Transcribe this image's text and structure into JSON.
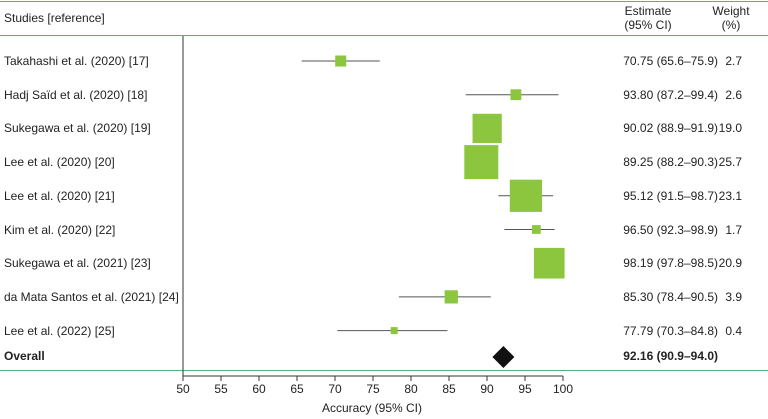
{
  "header": {
    "studies_label": "Studies [reference]",
    "estimate_label_line1": "Estimate",
    "estimate_label_line2": "(95% CI)",
    "weight_label_line1": "Weight",
    "weight_label_line2": "(%)"
  },
  "chart_data": {
    "type": "forest",
    "xlabel": "Accuracy (95% CI)",
    "xlim": [
      50,
      100
    ],
    "xticks": [
      50,
      55,
      60,
      65,
      70,
      75,
      80,
      85,
      90,
      95,
      100
    ],
    "marker_color": "#8cc63f",
    "rows": [
      {
        "study": "Takahashi et al. (2020) [17]",
        "estimate": 70.75,
        "lower": 65.6,
        "upper": 75.9,
        "estimate_text": "70.75 (65.6–75.9)",
        "weight": 2.7,
        "weight_text": "2.7"
      },
      {
        "study": "Hadj Saïd et al. (2020) [18]",
        "estimate": 93.8,
        "lower": 87.2,
        "upper": 99.4,
        "estimate_text": "93.80 (87.2–99.4)",
        "weight": 2.6,
        "weight_text": "2.6"
      },
      {
        "study": "Sukegawa et al. (2020) [19]",
        "estimate": 90.02,
        "lower": 88.9,
        "upper": 91.9,
        "estimate_text": "90.02 (88.9–91.9)",
        "weight": 19.0,
        "weight_text": "19.0"
      },
      {
        "study": "Lee et al. (2020) [20]",
        "estimate": 89.25,
        "lower": 88.2,
        "upper": 90.3,
        "estimate_text": "89.25 (88.2–90.3)",
        "weight": 25.7,
        "weight_text": "25.7"
      },
      {
        "study": "Lee et al. (2020) [21]",
        "estimate": 95.12,
        "lower": 91.5,
        "upper": 98.7,
        "estimate_text": "95.12 (91.5–98.7)",
        "weight": 23.1,
        "weight_text": "23.1"
      },
      {
        "study": "Kim et al. (2020) [22]",
        "estimate": 96.5,
        "lower": 92.3,
        "upper": 98.9,
        "estimate_text": "96.50 (92.3–98.9)",
        "weight": 1.7,
        "weight_text": "1.7"
      },
      {
        "study": "Sukegawa et al. (2021) [23]",
        "estimate": 98.19,
        "lower": 97.8,
        "upper": 98.5,
        "estimate_text": "98.19 (97.8–98.5)",
        "weight": 20.9,
        "weight_text": "20.9"
      },
      {
        "study": "da Mata Santos et al. (2021) [24]",
        "estimate": 85.3,
        "lower": 78.4,
        "upper": 90.5,
        "estimate_text": "85.30 (78.4–90.5)",
        "weight": 3.9,
        "weight_text": "3.9"
      },
      {
        "study": "Lee et al. (2022) [25]",
        "estimate": 77.79,
        "lower": 70.3,
        "upper": 84.8,
        "estimate_text": "77.79 (70.3–84.8)",
        "weight": 0.4,
        "weight_text": "0.4"
      }
    ],
    "overall": {
      "label": "Overall",
      "estimate": 92.16,
      "lower": 90.9,
      "upper": 94.0,
      "estimate_text": "92.16 (90.9–94.0)"
    }
  }
}
